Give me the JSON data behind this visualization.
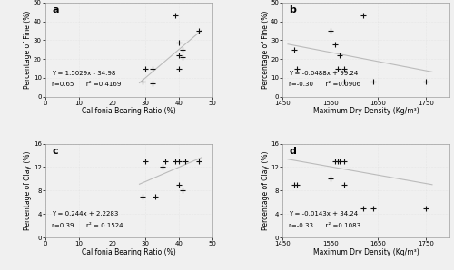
{
  "panel_a": {
    "label": "a",
    "x": [
      29,
      30,
      32,
      32,
      39,
      40,
      40,
      40,
      41,
      41,
      46
    ],
    "y": [
      8,
      15,
      7,
      15,
      43,
      29,
      22,
      15,
      25,
      21,
      35
    ],
    "equation": "Y = 1.5029x - 34.98",
    "r": "r=0.65",
    "r2": "r² =0.4169",
    "slope": 1.5029,
    "intercept": -34.98,
    "xlabel": "Califonia Bearing Ratio (%)",
    "ylabel": "Percentage of Fine (%)",
    "xlim": [
      0,
      50
    ],
    "ylim": [
      0,
      50
    ],
    "xticks": [
      0,
      10,
      20,
      30,
      40,
      50
    ],
    "yticks": [
      0,
      10,
      20,
      30,
      40,
      50
    ]
  },
  "panel_b": {
    "label": "b",
    "x": [
      1475,
      1480,
      1550,
      1560,
      1565,
      1570,
      1580,
      1580,
      1620,
      1640,
      1750
    ],
    "y": [
      25,
      15,
      35,
      28,
      15,
      22,
      15,
      8,
      43,
      8,
      8
    ],
    "equation": "Y = -0.0488x + 99.24",
    "r": "r=-0.30",
    "r2": "r² =0.0906",
    "slope": -0.0488,
    "intercept": 99.24,
    "xlabel": "Maximum Dry Density (Kg/m³)",
    "ylabel": "Percentage of Fine (%)",
    "xlim": [
      1450,
      1800
    ],
    "ylim": [
      0,
      50
    ],
    "xticks": [
      1450,
      1550,
      1650,
      1750
    ],
    "yticks": [
      0,
      10,
      20,
      30,
      40,
      50
    ]
  },
  "panel_c": {
    "label": "c",
    "x": [
      29,
      30,
      33,
      35,
      36,
      39,
      40,
      40,
      41,
      42,
      46
    ],
    "y": [
      7,
      13,
      7,
      12,
      13,
      13,
      9,
      13,
      8,
      13,
      13
    ],
    "equation": "Y = 0.244x + 2.2283",
    "r": "r=0.39",
    "r2": "r² = 0.1524",
    "slope": 0.244,
    "intercept": 2.2283,
    "xlabel": "Califonia Bearing Ratio (%)",
    "ylabel": "Percentage of Clay (%)",
    "xlim": [
      0,
      50
    ],
    "ylim": [
      0,
      16
    ],
    "xticks": [
      0,
      10,
      20,
      30,
      40,
      50
    ],
    "yticks": [
      0,
      4,
      8,
      12,
      16
    ]
  },
  "panel_d": {
    "label": "d",
    "x": [
      1475,
      1480,
      1550,
      1560,
      1565,
      1570,
      1580,
      1580,
      1620,
      1640,
      1750
    ],
    "y": [
      9,
      9,
      10,
      13,
      13,
      13,
      13,
      9,
      5,
      5,
      5
    ],
    "equation": "Y = -0.0143x + 34.24",
    "r": "r=-0.33",
    "r2": "r² =0.1083",
    "slope": -0.0143,
    "intercept": 34.24,
    "xlabel": "Maximum Dry Density (Kg/m³)",
    "ylabel": "Percentage of Clay (%)",
    "xlim": [
      1450,
      1800
    ],
    "ylim": [
      0,
      16
    ],
    "xticks": [
      1450,
      1550,
      1650,
      1750
    ],
    "yticks": [
      0,
      4,
      8,
      12,
      16
    ]
  },
  "marker": "+",
  "marker_size": 5,
  "marker_color": "#111111",
  "line_color": "#bbbbbb",
  "line_width": 0.8,
  "bg_color": "#f0f0f0",
  "grid_color": "#dddddd",
  "font_size_label": 5.5,
  "font_size_eq": 5.0,
  "font_size_panel": 8,
  "font_size_tick": 5.0
}
